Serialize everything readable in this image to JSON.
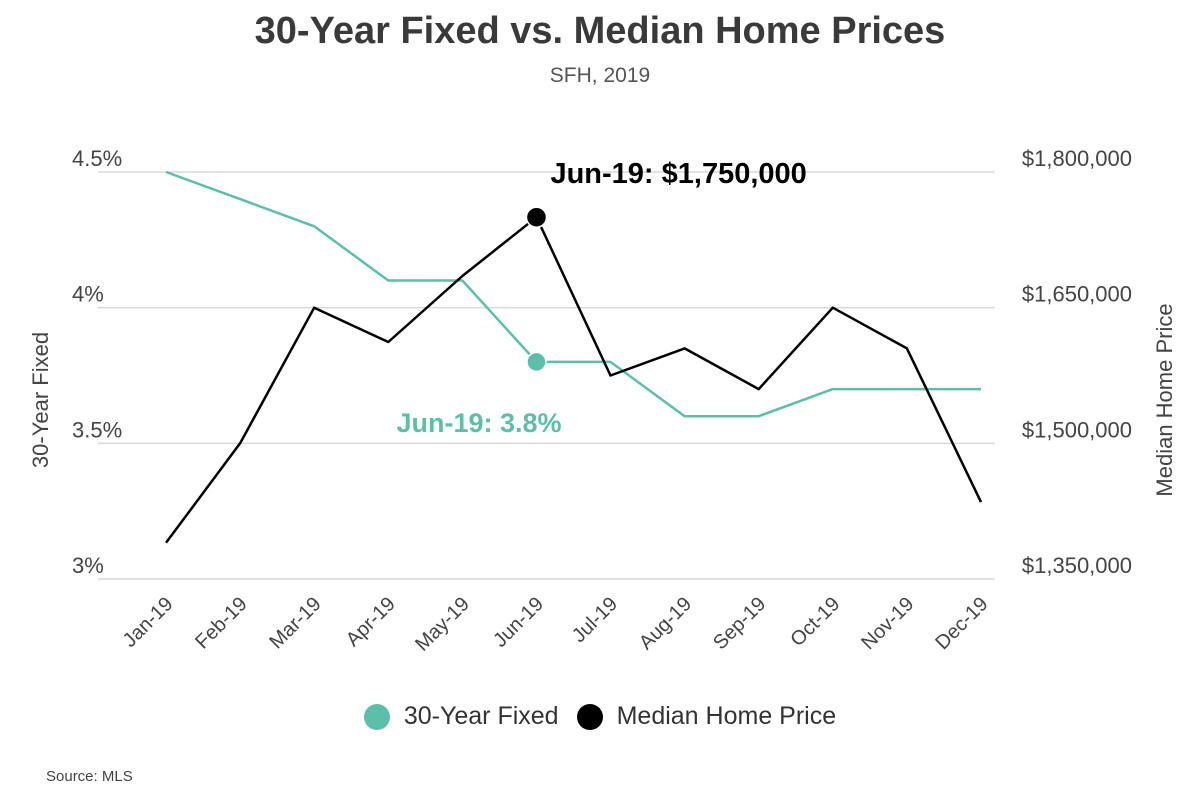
{
  "title": "30-Year Fixed vs. Median Home Prices",
  "subtitle": "SFH, 2019",
  "source": "Source:  MLS",
  "colors": {
    "rate": "#5bbfaa",
    "price": "#000000",
    "grid": "#d8d8d8",
    "text": "#444444"
  },
  "chart_data": {
    "type": "line",
    "categories": [
      "Jan-19",
      "Feb-19",
      "Mar-19",
      "Apr-19",
      "May-19",
      "Jun-19",
      "Jul-19",
      "Aug-19",
      "Sep-19",
      "Oct-19",
      "Nov-19",
      "Dec-19"
    ],
    "series": [
      {
        "name": "30-Year Fixed",
        "axis": "left",
        "color": "#5bbfaa",
        "values": [
          4.5,
          4.4,
          4.3,
          4.1,
          4.1,
          3.8,
          3.8,
          3.6,
          3.6,
          3.7,
          3.7,
          3.7
        ]
      },
      {
        "name": "Median Home Price",
        "axis": "right",
        "color": "#000000",
        "values": [
          1390000,
          1500000,
          1650000,
          1612000,
          1685000,
          1750000,
          1575000,
          1605000,
          1560000,
          1650000,
          1605000,
          1435000
        ]
      }
    ],
    "y_left": {
      "label": "30-Year Fixed",
      "min": 3,
      "max": 4.5,
      "ticks": [
        {
          "value": 3,
          "label": "3%"
        },
        {
          "value": 3.5,
          "label": "3.5%"
        },
        {
          "value": 4,
          "label": "4%"
        },
        {
          "value": 4.5,
          "label": "4.5%"
        }
      ]
    },
    "y_right": {
      "label": "Median Home Price",
      "min": 1350000,
      "max": 1800000,
      "ticks": [
        {
          "value": 1350000,
          "label": "$1,350,000"
        },
        {
          "value": 1500000,
          "label": "$1,500,000"
        },
        {
          "value": 1650000,
          "label": "$1,650,000"
        },
        {
          "value": 1800000,
          "label": "$1,800,000"
        }
      ]
    },
    "grid": true,
    "legend_position": "bottom",
    "annotations": [
      {
        "series": "Median Home Price",
        "index": 5,
        "text": "Jun-19: $1,750,000"
      },
      {
        "series": "30-Year Fixed",
        "index": 5,
        "text": "Jun-19: 3.8%"
      }
    ]
  }
}
